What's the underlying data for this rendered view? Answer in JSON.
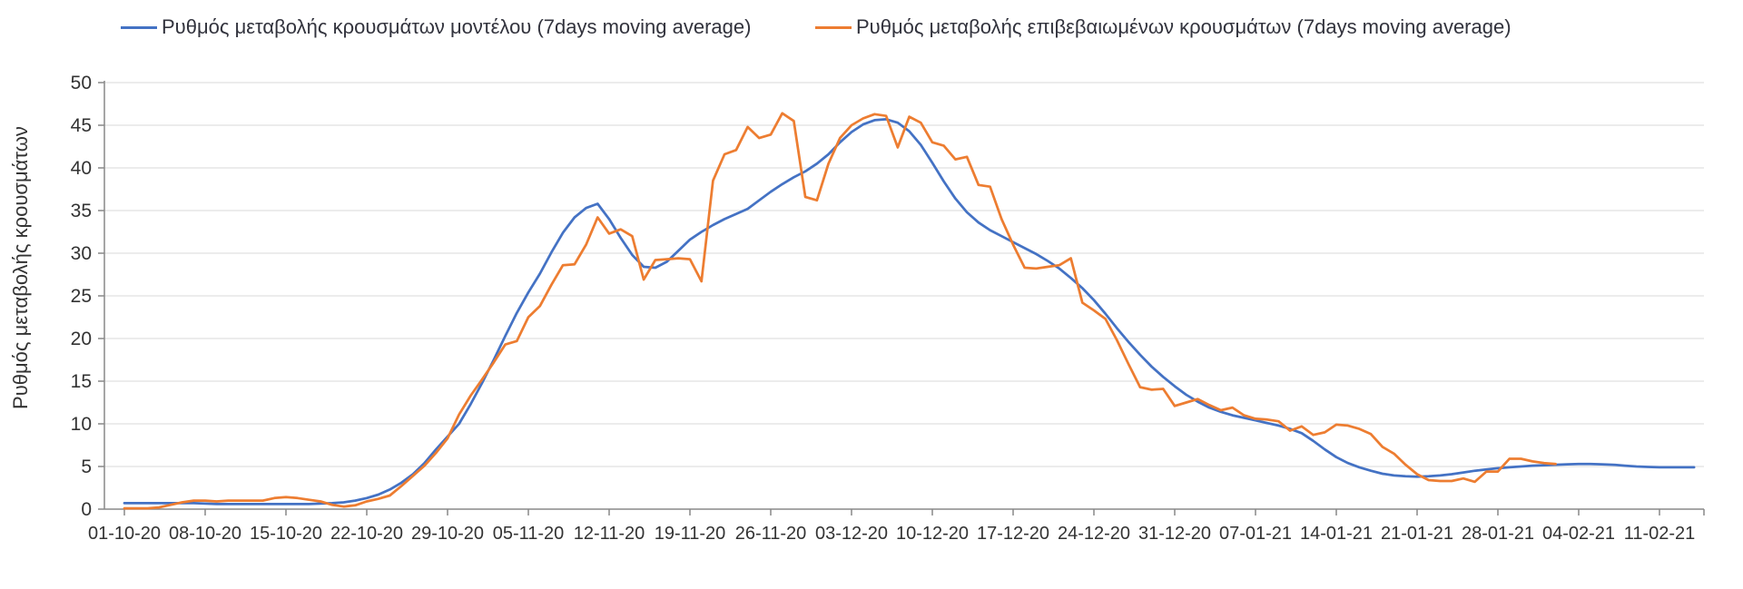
{
  "legend": {
    "series": [
      {
        "label": "Ρυθμός μεταβολής κρουσμάτων μοντέλου (7days moving average)",
        "color": "#4472C4"
      },
      {
        "label": "Ρυθμός μεταβολής επιβεβαιωμένων κρουσμάτων (7days moving average)",
        "color": "#ED7D31"
      }
    ]
  },
  "y_axis": {
    "title": "Ρυθμός μεταβολής κρουσμάτων",
    "tick_labels": [
      "0",
      "5",
      "10",
      "15",
      "20",
      "25",
      "30",
      "35",
      "40",
      "45",
      "50"
    ]
  },
  "x_axis": {
    "tick_labels": [
      "01-10-20",
      "08-10-20",
      "15-10-20",
      "22-10-20",
      "29-10-20",
      "05-11-20",
      "12-11-20",
      "19-11-20",
      "26-11-20",
      "03-12-20",
      "10-12-20",
      "17-12-20",
      "24-12-20",
      "31-12-20",
      "07-01-21",
      "14-01-21",
      "21-01-21",
      "28-01-21",
      "04-02-21",
      "11-02-21"
    ]
  },
  "chart_data": {
    "type": "line",
    "title": "",
    "xlabel": "",
    "ylabel": "Ρυθμός μεταβολής κρουσμάτων",
    "ylim": [
      0,
      50
    ],
    "y_ticks": [
      0,
      5,
      10,
      15,
      20,
      25,
      30,
      35,
      40,
      45,
      50
    ],
    "grid": true,
    "legend_position": "top",
    "x_start_label": "01-10-20",
    "x_cadence": "daily",
    "x_tick_every_days": 7,
    "x_tick_labels": [
      "01-10-20",
      "08-10-20",
      "15-10-20",
      "22-10-20",
      "29-10-20",
      "05-11-20",
      "12-11-20",
      "19-11-20",
      "26-11-20",
      "03-12-20",
      "10-12-20",
      "17-12-20",
      "24-12-20",
      "31-12-20",
      "07-01-21",
      "14-01-21",
      "21-01-21",
      "28-01-21",
      "04-02-21",
      "11-02-21"
    ],
    "series": [
      {
        "name": "Ρυθμός μεταβολής κρουσμάτων μοντέλου (7days moving average)",
        "color": "#4472C4",
        "values": [
          0.7,
          0.7,
          0.7,
          0.7,
          0.7,
          0.7,
          0.7,
          0.65,
          0.6,
          0.6,
          0.6,
          0.6,
          0.6,
          0.6,
          0.6,
          0.6,
          0.6,
          0.65,
          0.7,
          0.8,
          1.0,
          1.3,
          1.7,
          2.3,
          3.1,
          4.1,
          5.4,
          7.0,
          8.5,
          10.0,
          12.3,
          14.8,
          17.5,
          20.3,
          23.0,
          25.4,
          27.6,
          30.1,
          32.4,
          34.2,
          35.3,
          35.8,
          34.0,
          31.8,
          29.8,
          28.4,
          28.3,
          29.0,
          30.3,
          31.6,
          32.5,
          33.3,
          34.0,
          34.6,
          35.2,
          36.2,
          37.2,
          38.1,
          38.9,
          39.6,
          40.5,
          41.6,
          43.0,
          44.2,
          45.1,
          45.6,
          45.7,
          45.3,
          44.3,
          42.7,
          40.6,
          38.4,
          36.4,
          34.8,
          33.6,
          32.7,
          32.0,
          31.3,
          30.6,
          29.9,
          29.1,
          28.2,
          27.1,
          25.9,
          24.5,
          22.9,
          21.2,
          19.6,
          18.1,
          16.7,
          15.5,
          14.4,
          13.4,
          12.6,
          11.9,
          11.4,
          11.0,
          10.7,
          10.4,
          10.1,
          9.8,
          9.4,
          8.9,
          8.0,
          7.0,
          6.1,
          5.4,
          4.9,
          4.5,
          4.15,
          3.95,
          3.85,
          3.8,
          3.85,
          3.95,
          4.1,
          4.3,
          4.5,
          4.65,
          4.8,
          4.9,
          5.0,
          5.1,
          5.15,
          5.2,
          5.25,
          5.3,
          5.3,
          5.25,
          5.2,
          5.1,
          5.0,
          4.95,
          4.9,
          4.9,
          4.9,
          4.9
        ]
      },
      {
        "name": "Ρυθμός μεταβολής επιβεβαιωμένων κρουσμάτων (7days moving average)",
        "color": "#ED7D31",
        "values": [
          0.1,
          0.1,
          0.1,
          0.2,
          0.5,
          0.8,
          1.0,
          1.0,
          0.9,
          1.0,
          1.0,
          1.0,
          1.0,
          1.3,
          1.4,
          1.3,
          1.1,
          0.9,
          0.5,
          0.3,
          0.45,
          0.9,
          1.2,
          1.6,
          2.7,
          3.9,
          5.1,
          6.6,
          8.3,
          11.1,
          13.3,
          15.2,
          17.2,
          19.3,
          19.7,
          22.5,
          23.8,
          26.3,
          28.6,
          28.7,
          31.0,
          34.2,
          32.3,
          32.8,
          32.0,
          26.9,
          29.2,
          29.3,
          29.4,
          29.3,
          26.7,
          38.5,
          41.6,
          42.1,
          44.8,
          43.5,
          43.9,
          46.4,
          45.5,
          36.6,
          36.2,
          40.5,
          43.5,
          45.0,
          45.8,
          46.3,
          46.1,
          42.4,
          46.0,
          45.3,
          43.0,
          42.6,
          41.0,
          41.3,
          38.0,
          37.8,
          34.0,
          31.0,
          28.3,
          28.2,
          28.4,
          28.6,
          29.4,
          24.2,
          23.3,
          22.3,
          19.8,
          17.0,
          14.3,
          14.0,
          14.1,
          12.1,
          12.5,
          12.9,
          12.2,
          11.6,
          11.9,
          11.0,
          10.6,
          10.5,
          10.3,
          9.2,
          9.7,
          8.7,
          9.0,
          9.9,
          9.8,
          9.4,
          8.8,
          7.3,
          6.5,
          5.2,
          4.1,
          3.4,
          3.3,
          3.3,
          3.6,
          3.2,
          4.4,
          4.4,
          5.9,
          5.9,
          5.6,
          5.4,
          5.3
        ]
      }
    ]
  },
  "colors": {
    "grid": "#E6E6E6",
    "axis": "#898989",
    "tick_text": "#333333"
  }
}
